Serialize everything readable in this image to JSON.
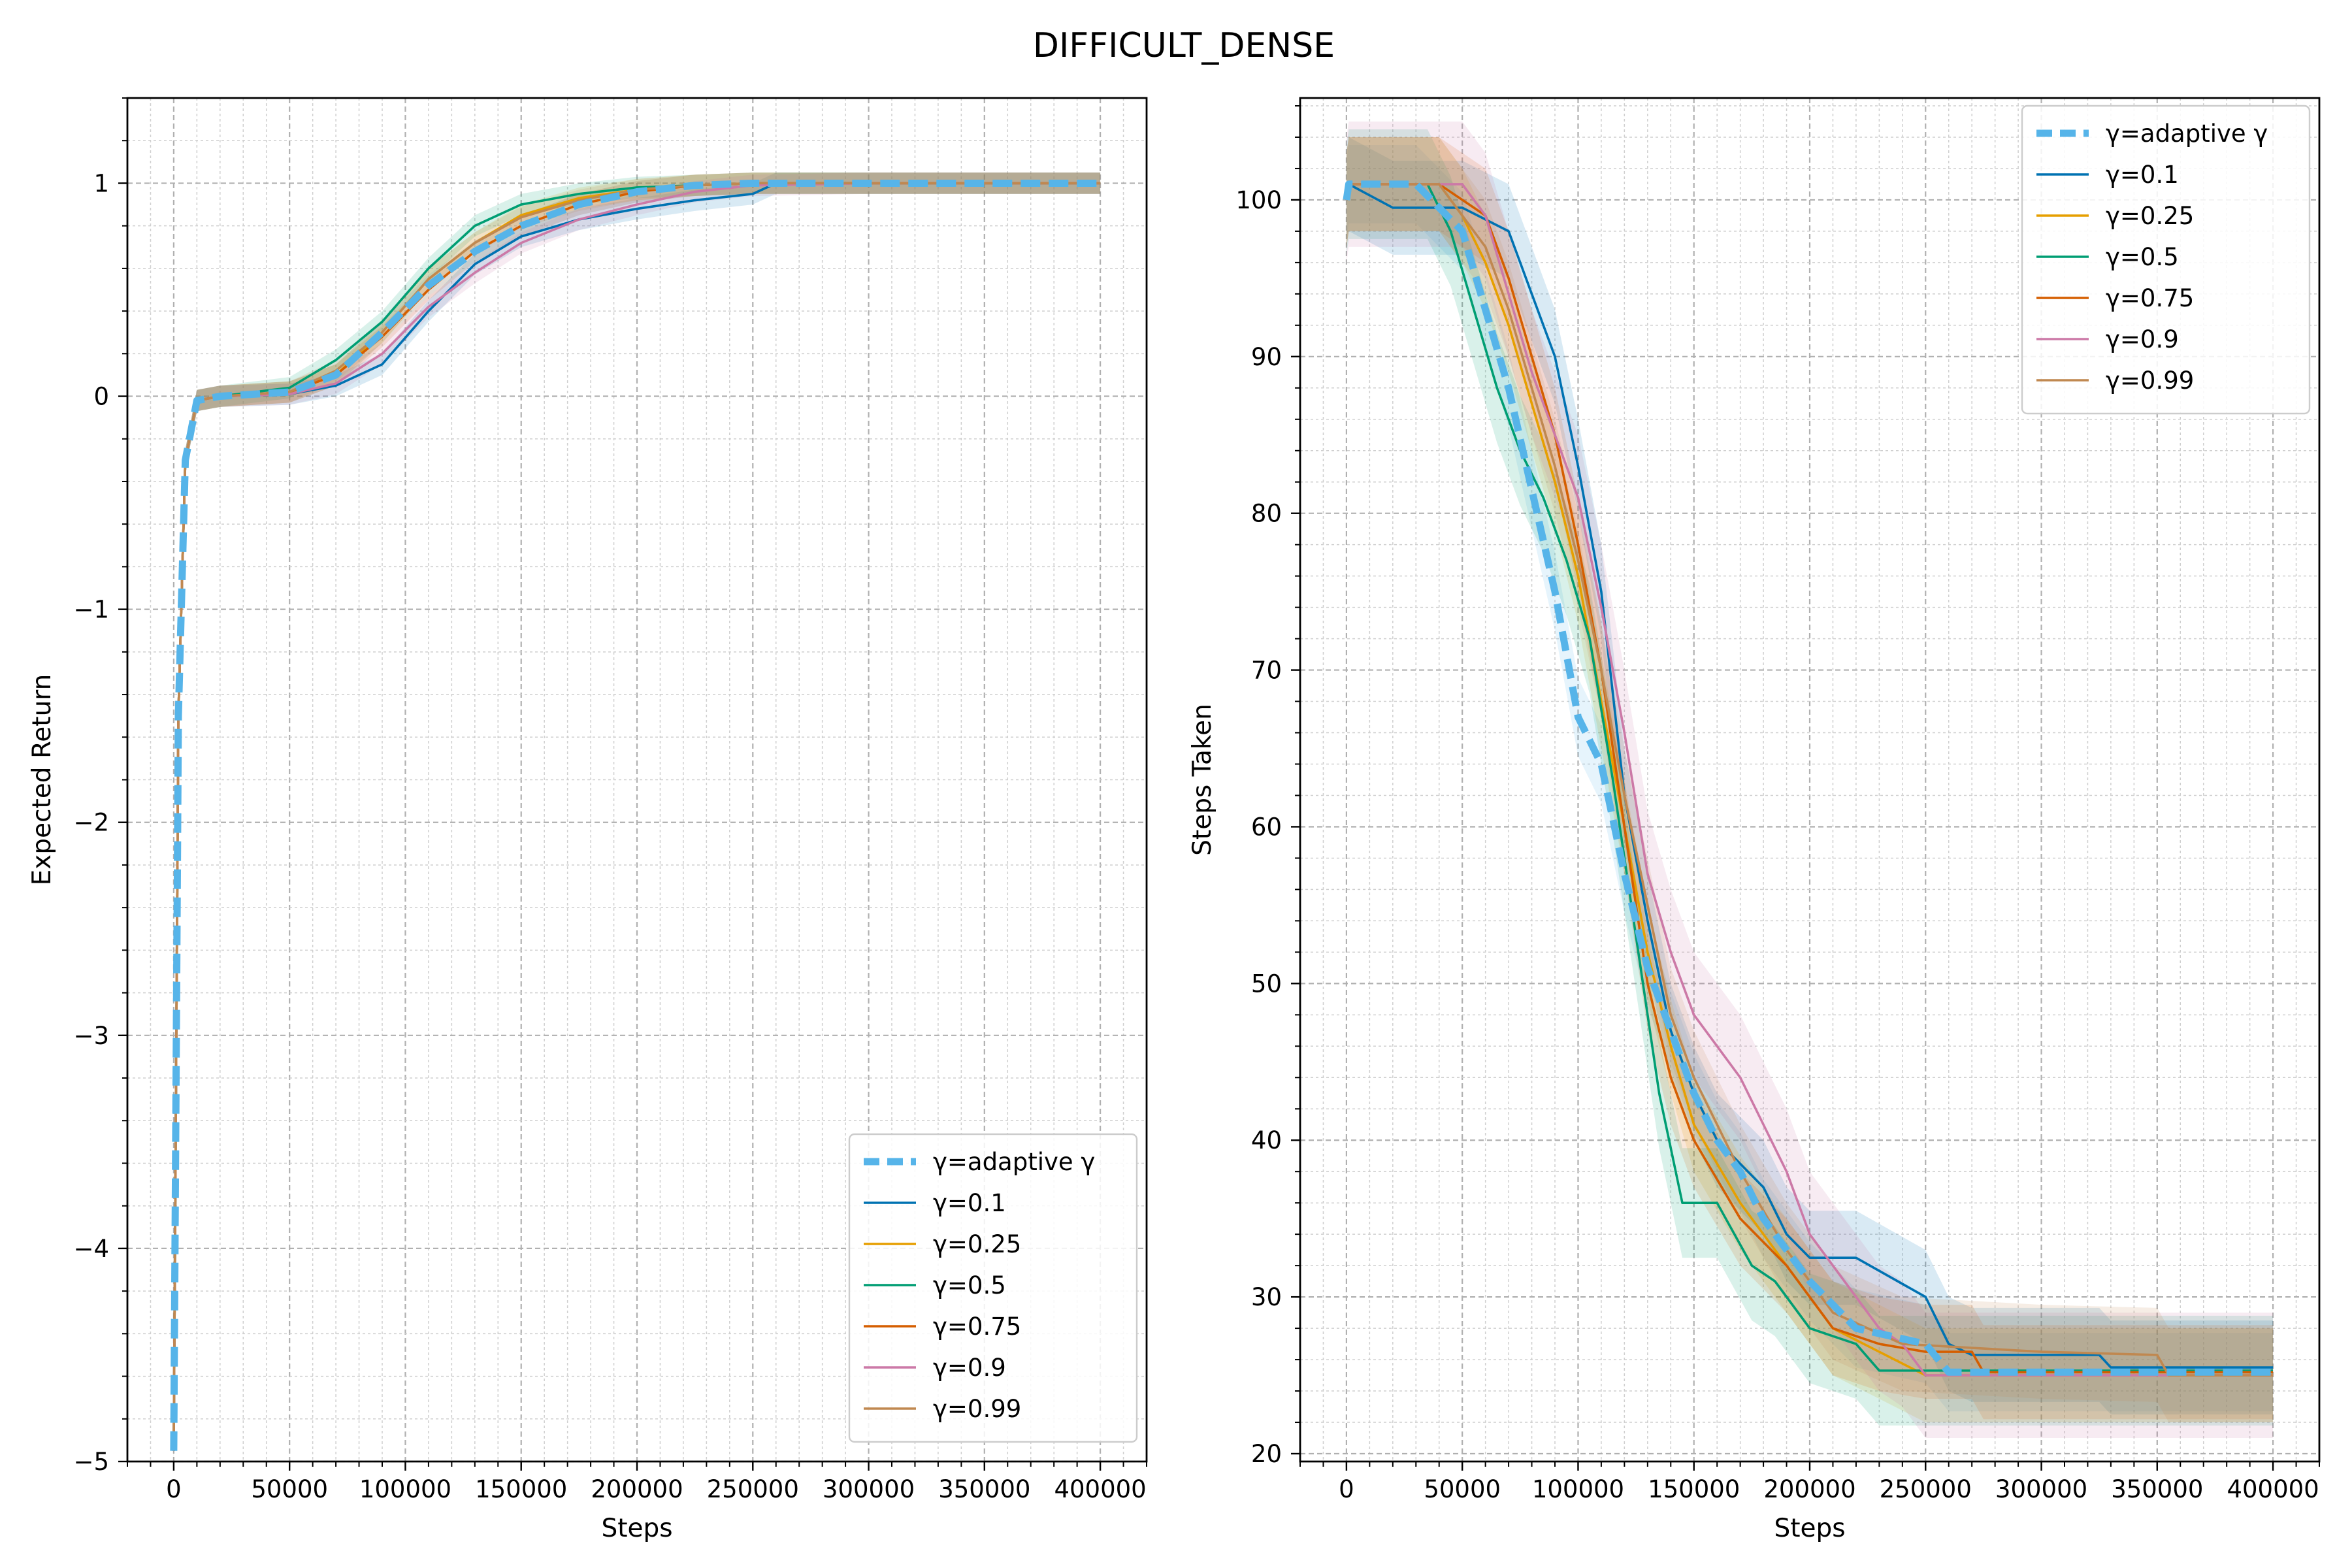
{
  "figure_title": "DIFFICULT_DENSE",
  "colors": {
    "adaptive": "#56b4e9",
    "g0.1": "#0072b2",
    "g0.25": "#e69f00",
    "g0.5": "#009e73",
    "g0.75": "#d55e00",
    "g0.9": "#cc79a7",
    "g0.99": "#c08850"
  },
  "chart_data": [
    {
      "type": "line",
      "title": "",
      "xlabel": "Steps",
      "ylabel": "Expected Return",
      "xlim": [
        -20000,
        420000
      ],
      "ylim": [
        -5,
        1.4
      ],
      "xticks": [
        0,
        50000,
        100000,
        150000,
        200000,
        250000,
        300000,
        350000,
        400000
      ],
      "yticks": [
        1,
        0,
        -1,
        -2,
        -3,
        -4,
        -5
      ],
      "ytick_labels": [
        "1",
        "0",
        "−1",
        "−2",
        "−3",
        "−4",
        "−5"
      ],
      "grid": true,
      "legend_position": "lower-right",
      "series": [
        {
          "name": "γ=adaptive γ",
          "key": "adaptive",
          "style": "dashed",
          "band": 0.05,
          "x": [
            0,
            2000,
            5000,
            10000,
            20000,
            50000,
            70000,
            90000,
            110000,
            130000,
            150000,
            175000,
            200000,
            225000,
            250000,
            300000,
            350000,
            400000
          ],
          "y": [
            -4.95,
            -1.5,
            -0.3,
            -0.02,
            0.0,
            0.02,
            0.1,
            0.3,
            0.52,
            0.68,
            0.8,
            0.9,
            0.96,
            0.99,
            1.0,
            1.0,
            1.0,
            1.0
          ]
        },
        {
          "name": "γ=0.1",
          "key": "g0.1",
          "style": "solid",
          "band": 0.05,
          "x": [
            0,
            2000,
            5000,
            10000,
            20000,
            50000,
            70000,
            90000,
            110000,
            130000,
            150000,
            175000,
            200000,
            225000,
            250000,
            260000,
            300000,
            350000,
            400000
          ],
          "y": [
            -4.95,
            -1.5,
            -0.3,
            -0.02,
            0.0,
            0.01,
            0.05,
            0.15,
            0.4,
            0.62,
            0.75,
            0.83,
            0.88,
            0.92,
            0.95,
            1.0,
            1.0,
            1.0,
            1.0
          ]
        },
        {
          "name": "γ=0.25",
          "key": "g0.25",
          "style": "solid",
          "band": 0.05,
          "x": [
            0,
            2000,
            5000,
            10000,
            20000,
            50000,
            70000,
            90000,
            110000,
            130000,
            150000,
            175000,
            200000,
            225000,
            250000,
            300000,
            350000,
            400000
          ],
          "y": [
            -4.95,
            -1.5,
            -0.3,
            -0.02,
            0.0,
            0.02,
            0.1,
            0.3,
            0.55,
            0.72,
            0.85,
            0.93,
            0.97,
            0.99,
            1.0,
            1.0,
            1.0,
            1.0
          ]
        },
        {
          "name": "γ=0.5",
          "key": "g0.5",
          "style": "solid",
          "band": 0.05,
          "x": [
            0,
            2000,
            5000,
            10000,
            20000,
            50000,
            70000,
            90000,
            110000,
            130000,
            150000,
            175000,
            200000,
            225000,
            250000,
            300000,
            350000,
            400000
          ],
          "y": [
            -4.95,
            -1.5,
            -0.3,
            -0.02,
            0.0,
            0.04,
            0.17,
            0.35,
            0.6,
            0.8,
            0.9,
            0.95,
            0.98,
            0.99,
            1.0,
            1.0,
            1.0,
            1.0
          ]
        },
        {
          "name": "γ=0.75",
          "key": "g0.75",
          "style": "solid",
          "band": 0.05,
          "x": [
            0,
            2000,
            5000,
            10000,
            20000,
            50000,
            70000,
            90000,
            110000,
            130000,
            150000,
            175000,
            200000,
            225000,
            250000,
            300000,
            350000,
            400000
          ],
          "y": [
            -4.95,
            -1.5,
            -0.3,
            -0.02,
            0.0,
            0.02,
            0.1,
            0.28,
            0.5,
            0.68,
            0.8,
            0.9,
            0.96,
            0.99,
            1.0,
            1.0,
            1.0,
            1.0
          ]
        },
        {
          "name": "γ=0.9",
          "key": "g0.9",
          "style": "solid",
          "band": 0.05,
          "x": [
            0,
            2000,
            5000,
            10000,
            20000,
            50000,
            70000,
            90000,
            110000,
            130000,
            150000,
            175000,
            200000,
            225000,
            250000,
            300000,
            350000,
            400000
          ],
          "y": [
            -4.95,
            -1.5,
            -0.3,
            -0.02,
            0.0,
            0.01,
            0.06,
            0.2,
            0.42,
            0.58,
            0.72,
            0.83,
            0.9,
            0.96,
            0.99,
            1.0,
            1.0,
            1.0
          ]
        },
        {
          "name": "γ=0.99",
          "key": "g0.99",
          "style": "solid",
          "band": 0.05,
          "x": [
            0,
            2000,
            5000,
            10000,
            20000,
            50000,
            70000,
            90000,
            110000,
            130000,
            150000,
            175000,
            200000,
            225000,
            250000,
            300000,
            350000,
            400000
          ],
          "y": [
            -4.95,
            -1.5,
            -0.3,
            -0.02,
            0.0,
            0.02,
            0.12,
            0.3,
            0.55,
            0.72,
            0.84,
            0.92,
            0.97,
            0.99,
            1.0,
            1.0,
            1.0,
            1.0
          ]
        }
      ]
    },
    {
      "type": "line",
      "title": "",
      "xlabel": "Steps",
      "ylabel": "Steps Taken",
      "xlim": [
        -20000,
        420000
      ],
      "ylim": [
        19.5,
        106.5
      ],
      "xticks": [
        0,
        50000,
        100000,
        150000,
        200000,
        250000,
        300000,
        350000,
        400000
      ],
      "yticks": [
        100,
        90,
        80,
        70,
        60,
        50,
        40,
        30,
        20
      ],
      "ytick_labels": [
        "100",
        "90",
        "80",
        "70",
        "60",
        "50",
        "40",
        "30",
        "20"
      ],
      "grid": true,
      "legend_position": "upper-right",
      "series": [
        {
          "name": "γ=adaptive γ",
          "key": "adaptive",
          "style": "dashed",
          "band": 2.5,
          "x": [
            0,
            1000,
            30000,
            50000,
            70000,
            90000,
            100000,
            110000,
            120000,
            130000,
            140000,
            150000,
            160000,
            170000,
            180000,
            200000,
            220000,
            250000,
            260000,
            400000
          ],
          "y": [
            100,
            101,
            101,
            98,
            88,
            75,
            67,
            64,
            57,
            51,
            47,
            43,
            40,
            38,
            35,
            31,
            28,
            27,
            25.2,
            25.2
          ]
        },
        {
          "name": "γ=0.1",
          "key": "g0.1",
          "style": "solid",
          "band": 3,
          "x": [
            0,
            1000,
            20000,
            50000,
            70000,
            90000,
            100000,
            110000,
            120000,
            130000,
            140000,
            150000,
            160000,
            170000,
            180000,
            190000,
            200000,
            220000,
            250000,
            260000,
            270000,
            325000,
            330000,
            400000
          ],
          "y": [
            100,
            101,
            99.5,
            99.5,
            98,
            90,
            83,
            75,
            62,
            54,
            47,
            43,
            40,
            38.5,
            37,
            34,
            32.5,
            32.5,
            30,
            27,
            26.3,
            26.3,
            25.5,
            25.5
          ]
        },
        {
          "name": "γ=0.25",
          "key": "g0.25",
          "style": "solid",
          "band": 3,
          "x": [
            0,
            1000,
            40000,
            50000,
            60000,
            70000,
            80000,
            90000,
            100000,
            110000,
            120000,
            130000,
            140000,
            150000,
            170000,
            190000,
            210000,
            230000,
            250000,
            400000
          ],
          "y": [
            100,
            101,
            101,
            99,
            96,
            92,
            87,
            82,
            76,
            68,
            60,
            52,
            46,
            41,
            36,
            32,
            28,
            26.5,
            25,
            25
          ]
        },
        {
          "name": "γ=0.5",
          "key": "g0.5",
          "style": "solid",
          "band": 3.5,
          "x": [
            0,
            1000,
            35000,
            45000,
            55000,
            65000,
            75000,
            85000,
            95000,
            105000,
            115000,
            125000,
            135000,
            145000,
            160000,
            175000,
            185000,
            200000,
            220000,
            230000,
            400000
          ],
          "y": [
            100,
            101,
            101,
            98,
            93,
            88,
            84,
            81,
            77,
            72,
            63,
            53,
            43,
            36,
            36,
            32,
            31,
            28,
            27,
            25.3,
            25.3
          ]
        },
        {
          "name": "γ=0.75",
          "key": "g0.75",
          "style": "solid",
          "band": 3,
          "x": [
            0,
            1000,
            40000,
            60000,
            70000,
            80000,
            90000,
            100000,
            110000,
            120000,
            130000,
            140000,
            150000,
            170000,
            190000,
            210000,
            230000,
            250000,
            270000,
            275000,
            400000
          ],
          "y": [
            100,
            101,
            101,
            99,
            95,
            90,
            85,
            78,
            70,
            60,
            50,
            44,
            40,
            35,
            32,
            28,
            27,
            26.5,
            26.5,
            25.2,
            25.2
          ]
        },
        {
          "name": "γ=0.9",
          "key": "g0.9",
          "style": "solid",
          "band": 4,
          "x": [
            0,
            1000,
            50000,
            60000,
            70000,
            80000,
            90000,
            100000,
            110000,
            120000,
            130000,
            140000,
            150000,
            160000,
            170000,
            180000,
            190000,
            200000,
            210000,
            220000,
            230000,
            240000,
            250000,
            400000
          ],
          "y": [
            100,
            101,
            101,
            99,
            94,
            89,
            85,
            81,
            74,
            66,
            57,
            52,
            48,
            46,
            44,
            41,
            38,
            34,
            32,
            30,
            28,
            27,
            25,
            25
          ]
        },
        {
          "name": "γ=0.99",
          "key": "g0.99",
          "style": "solid",
          "band": 3,
          "x": [
            0,
            1000,
            40000,
            50000,
            60000,
            70000,
            80000,
            90000,
            100000,
            110000,
            120000,
            130000,
            140000,
            150000,
            170000,
            190000,
            210000,
            240000,
            300000,
            350000,
            355000,
            400000
          ],
          "y": [
            100,
            101,
            101,
            99,
            97,
            93,
            88,
            83,
            77,
            70,
            62,
            55,
            48,
            44,
            38,
            33,
            29,
            27,
            26.5,
            26.3,
            25,
            25
          ]
        }
      ]
    }
  ]
}
